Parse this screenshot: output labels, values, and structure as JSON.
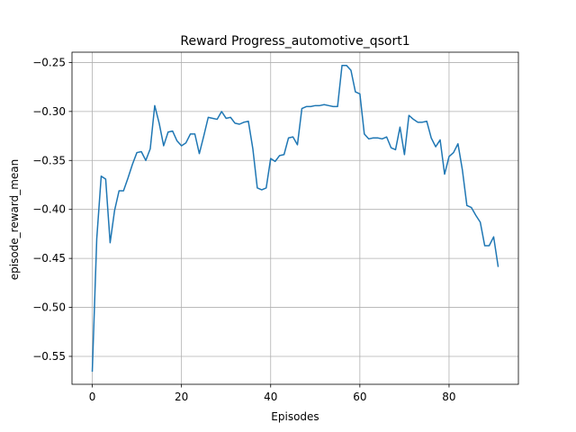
{
  "chart_data": {
    "type": "line",
    "title": "Reward Progress_automotive_qsort1",
    "xlabel": "Episodes",
    "ylabel": "episode_reward_mean",
    "xlim": [
      -4.55,
      95.55
    ],
    "ylim": [
      -0.5785,
      -0.2395
    ],
    "grid": true,
    "x_ticks": [
      0,
      20,
      40,
      60,
      80
    ],
    "x_tick_labels": [
      "0",
      "20",
      "40",
      "60",
      "80"
    ],
    "y_ticks": [
      -0.55,
      -0.5,
      -0.45,
      -0.4,
      -0.35,
      -0.3,
      -0.25
    ],
    "y_tick_labels": [
      "−0.55",
      "−0.50",
      "−0.45",
      "−0.40",
      "−0.35",
      "−0.30",
      "−0.25"
    ],
    "line_color": "#1f77b4",
    "series": [
      {
        "x": [
          0,
          1,
          2,
          3,
          4,
          5,
          6,
          7,
          8,
          9,
          10,
          11,
          12,
          13,
          14,
          15,
          16,
          17,
          18,
          19,
          20,
          21,
          22,
          23,
          24,
          25,
          26,
          27,
          28,
          29,
          30,
          31,
          32,
          33,
          34,
          35,
          36,
          37,
          38,
          39,
          40,
          41,
          42,
          43,
          44,
          45,
          46,
          47,
          48,
          49,
          50,
          51,
          52,
          53,
          54,
          55,
          56,
          57,
          58,
          59,
          60,
          61,
          62,
          63,
          64,
          65,
          66,
          67,
          68,
          69,
          70,
          71,
          72,
          73,
          74,
          75,
          76,
          77,
          78,
          79,
          80,
          81,
          82,
          83,
          84,
          85,
          86,
          87,
          88,
          89,
          90,
          91
        ],
        "y": [
          -0.565,
          -0.43,
          -0.366,
          -0.369,
          -0.434,
          -0.401,
          -0.381,
          -0.381,
          -0.368,
          -0.354,
          -0.342,
          -0.341,
          -0.35,
          -0.338,
          -0.294,
          -0.312,
          -0.335,
          -0.321,
          -0.32,
          -0.33,
          -0.335,
          -0.332,
          -0.323,
          -0.323,
          -0.343,
          -0.325,
          -0.306,
          -0.307,
          -0.308,
          -0.3,
          -0.307,
          -0.306,
          -0.312,
          -0.313,
          -0.311,
          -0.31,
          -0.338,
          -0.378,
          -0.38,
          -0.378,
          -0.348,
          -0.351,
          -0.345,
          -0.344,
          -0.327,
          -0.326,
          -0.334,
          -0.297,
          -0.295,
          -0.295,
          -0.294,
          -0.294,
          -0.293,
          -0.294,
          -0.295,
          -0.295,
          -0.253,
          -0.253,
          -0.258,
          -0.28,
          -0.282,
          -0.323,
          -0.328,
          -0.327,
          -0.327,
          -0.328,
          -0.326,
          -0.337,
          -0.339,
          -0.316,
          -0.344,
          -0.304,
          -0.308,
          -0.311,
          -0.311,
          -0.31,
          -0.327,
          -0.336,
          -0.329,
          -0.364,
          -0.346,
          -0.342,
          -0.333,
          -0.36,
          -0.396,
          -0.398,
          -0.406,
          -0.413,
          -0.437,
          -0.437,
          -0.428,
          -0.458
        ]
      }
    ]
  }
}
